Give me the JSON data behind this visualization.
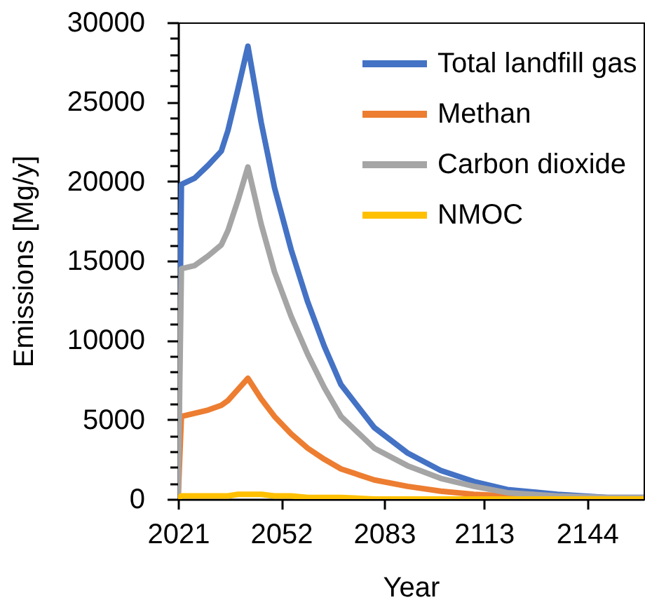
{
  "chart_data": {
    "type": "line",
    "xlabel": "Year",
    "ylabel": "Emissions [Mg/y]",
    "x": [
      2021,
      2022,
      2026,
      2030,
      2034,
      2036,
      2039,
      2042,
      2046,
      2050,
      2055,
      2060,
      2065,
      2070,
      2080,
      2090,
      2100,
      2110,
      2120,
      2135,
      2150,
      2161
    ],
    "series": [
      {
        "name": "Total landfill gas",
        "color": "#4472c4",
        "values": [
          0,
          19800,
          20200,
          21000,
          21900,
          23200,
          25800,
          28500,
          23700,
          19600,
          15700,
          12400,
          9600,
          7200,
          4500,
          2900,
          1800,
          1100,
          600,
          300,
          100,
          100
        ]
      },
      {
        "name": "Methan",
        "color": "#ed7d31",
        "values": [
          0,
          5200,
          5400,
          5600,
          5900,
          6200,
          6900,
          7600,
          6300,
          5200,
          4100,
          3200,
          2500,
          1900,
          1200,
          800,
          500,
          300,
          200,
          100,
          null,
          null
        ]
      },
      {
        "name": "Carbon dioxide",
        "color": "#a5a5a5",
        "values": [
          0,
          14500,
          14700,
          15300,
          16000,
          16900,
          18800,
          20900,
          17300,
          14300,
          11500,
          9100,
          7000,
          5200,
          3200,
          2100,
          1300,
          800,
          400,
          200,
          100,
          100
        ]
      },
      {
        "name": "NMOC",
        "color": "#ffc000",
        "values": [
          0,
          200,
          200,
          200,
          200,
          200,
          300,
          300,
          300,
          200,
          200,
          100,
          100,
          100,
          0,
          0,
          0,
          0,
          0,
          0,
          0,
          0
        ]
      }
    ],
    "xlim": [
      2021,
      2161
    ],
    "xticks": [
      2021,
      2052,
      2083,
      2113,
      2144
    ],
    "ylim": [
      0,
      30000
    ],
    "yticks": [
      0,
      {
        "value": 1000,
        "label": null
      },
      {
        "value": 2000,
        "label": null
      },
      {
        "value": 3000,
        "label": null
      },
      {
        "value": 4000,
        "label": null
      },
      5000,
      {
        "value": 6000,
        "label": null
      },
      {
        "value": 7000,
        "label": null
      },
      {
        "value": 8000,
        "label": null
      },
      {
        "value": 9000,
        "label": null
      },
      10000,
      {
        "value": 11000,
        "label": null
      },
      {
        "value": 12000,
        "label": null
      },
      {
        "value": 13000,
        "label": null
      },
      {
        "value": 14000,
        "label": null
      },
      15000,
      {
        "value": 16000,
        "label": null
      },
      {
        "value": 17000,
        "label": null
      },
      {
        "value": 18000,
        "label": null
      },
      {
        "value": 19000,
        "label": null
      },
      20000,
      {
        "value": 21000,
        "label": null
      },
      {
        "value": 22000,
        "label": null
      },
      {
        "value": 23000,
        "label": null
      },
      {
        "value": 24000,
        "label": null
      },
      25000,
      {
        "value": 26000,
        "label": null
      },
      {
        "value": 27000,
        "label": null
      },
      {
        "value": 28000,
        "label": null
      },
      {
        "value": 29000,
        "label": null
      },
      30000
    ],
    "grid": false,
    "legend": "top right"
  }
}
